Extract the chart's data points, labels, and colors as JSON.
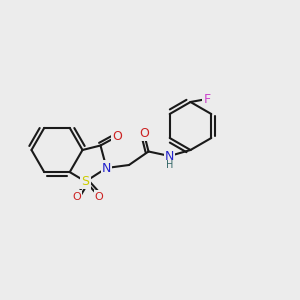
{
  "bg_color": "#ececec",
  "bond_color": "#1a1a1a",
  "lw": 1.5,
  "figsize": [
    3.0,
    3.0
  ],
  "dpi": 100,
  "xlim": [
    0.0,
    10.0
  ],
  "ylim": [
    0.5,
    8.5
  ],
  "atoms": {
    "S": {
      "color": "#cccc00"
    },
    "N1": {
      "color": "#2222cc"
    },
    "N2": {
      "color": "#2222cc"
    },
    "O1": {
      "color": "#cc2222"
    },
    "O2": {
      "color": "#cc2222"
    },
    "O3": {
      "color": "#cc2222"
    },
    "O4": {
      "color": "#cc2222"
    },
    "F": {
      "color": "#cc44cc"
    }
  }
}
